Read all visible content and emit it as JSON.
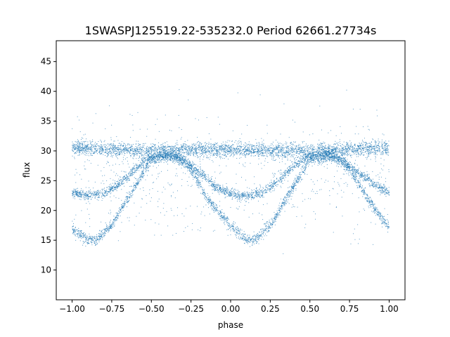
{
  "chart_data": {
    "type": "scatter",
    "title": "1SWASPJ125519.22-535232.0 Period 62661.27734s",
    "xlabel": "phase",
    "ylabel": "flux",
    "xlim": [
      -1.1,
      1.1
    ],
    "ylim": [
      5,
      48.5
    ],
    "x_ticks": [
      -1.0,
      -0.75,
      -0.5,
      -0.25,
      0.0,
      0.25,
      0.5,
      0.75,
      1.0
    ],
    "x_tick_labels": [
      "−1.00",
      "−0.75",
      "−0.50",
      "−0.25",
      "0.00",
      "0.25",
      "0.50",
      "0.75",
      "1.00"
    ],
    "y_ticks": [
      10,
      15,
      20,
      25,
      30,
      35,
      40,
      45
    ],
    "y_tick_labels": [
      "10",
      "15",
      "20",
      "25",
      "30",
      "35",
      "40",
      "45"
    ],
    "grid": false,
    "legend": "none",
    "point_color": "#1f77b4",
    "series": [
      {
        "description_x": [
          -1.0,
          -0.9,
          -0.85,
          -0.75,
          -0.65,
          -0.5,
          -0.35,
          -0.25,
          -0.15,
          0.0,
          0.1,
          0.15,
          0.25,
          0.35,
          0.5,
          0.65,
          0.75,
          0.85,
          1.0
        ],
        "values": [
          17.0,
          15.0,
          15.0,
          17.5,
          22.0,
          28.5,
          29.0,
          27.0,
          22.0,
          17.5,
          15.0,
          15.0,
          17.5,
          22.0,
          28.5,
          29.0,
          27.0,
          22.5,
          17.0
        ]
      },
      {
        "description_x": [
          -1.0,
          -0.9,
          -0.8,
          -0.7,
          -0.6,
          -0.5,
          -0.4,
          -0.3,
          -0.2,
          -0.1,
          0.0,
          0.1,
          0.2,
          0.3,
          0.4,
          0.5,
          0.6,
          0.7,
          0.8,
          0.9,
          1.0
        ],
        "values": [
          23.0,
          22.5,
          22.8,
          24.5,
          27.0,
          29.0,
          29.5,
          28.5,
          26.5,
          24.0,
          22.8,
          22.3,
          23.0,
          25.0,
          27.5,
          29.2,
          29.5,
          28.5,
          26.5,
          24.5,
          23.0
        ]
      },
      {
        "description_x": [
          -1.0,
          -0.5,
          0.0,
          0.5,
          1.0
        ],
        "values": [
          30.5,
          30.0,
          30.2,
          30.0,
          30.5
        ]
      }
    ]
  }
}
